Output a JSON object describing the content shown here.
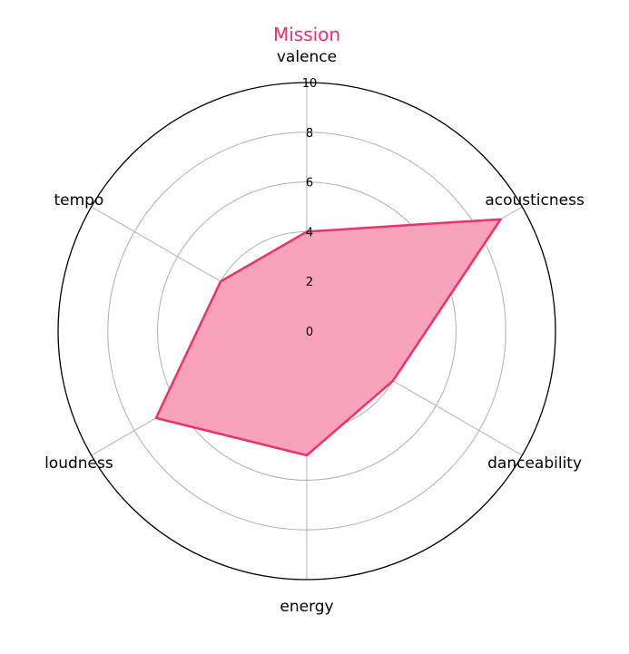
{
  "chart_data": {
    "type": "radar",
    "title": "Mission",
    "title_color": "#ec2f6d",
    "axes": [
      "valence",
      "acousticness",
      "danceability",
      "energy",
      "loudness",
      "tempo"
    ],
    "series": [
      {
        "values": [
          4.0,
          9.0,
          4.0,
          5.0,
          7.0,
          4.0
        ],
        "line_color": "#f0306e",
        "fill_color": "#f9a2bc"
      }
    ],
    "r_ticks": [
      "0",
      "2",
      "4",
      "6",
      "8",
      "10"
    ],
    "r_range": [
      0,
      10
    ],
    "grid": true,
    "legend": "none"
  }
}
